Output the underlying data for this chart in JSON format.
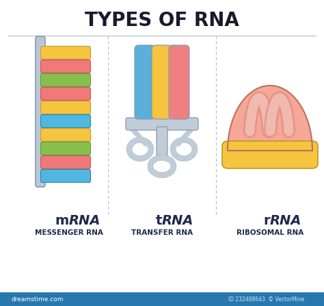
{
  "title": "TYPES OF RNA",
  "title_fontsize": 20,
  "title_color": "#1a1a2e",
  "background_color": "#ffffff",
  "divider_color": "#b0beca",
  "label_color": "#1e2a4a",
  "labels_prefix": [
    "m",
    "t",
    "r"
  ],
  "sublabels": [
    "MESSENGER RNA",
    "TRANSFER RNA",
    "RIBOSOMAL RNA"
  ],
  "mrna_strand_color": "#b8c8d8",
  "mrna_strand_edge": "#8898a8",
  "mrna_bar_colors": [
    "#f5c540",
    "#f07878",
    "#88c050",
    "#f07878",
    "#f5c540",
    "#50b8e0",
    "#f5c540",
    "#88c050",
    "#f07878",
    "#50b8e0"
  ],
  "trna_blue": "#5ab0d8",
  "trna_yellow": "#f5c540",
  "trna_pink": "#f08080",
  "trna_gray_fill": "#c0ccd8",
  "trna_gray_edge": "#8898b0",
  "rrna_body_color": "#f5a898",
  "rrna_body_edge": "#c07060",
  "rrna_groove_color": "#e08878",
  "rrna_inner_color": "#f0bab0",
  "rrna_base_color": "#f5c540",
  "rrna_base_edge": "#c09820",
  "footer_color": "#2878b0",
  "label_prefix_size": 12,
  "label_rna_size": 14
}
